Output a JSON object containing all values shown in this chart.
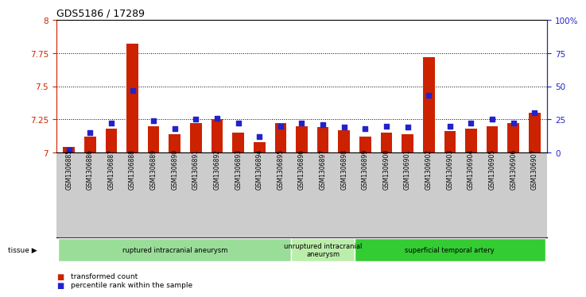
{
  "title": "GDS5186 / 17289",
  "samples": [
    "GSM1306885",
    "GSM1306886",
    "GSM1306887",
    "GSM1306888",
    "GSM1306889",
    "GSM1306890",
    "GSM1306891",
    "GSM1306892",
    "GSM1306893",
    "GSM1306894",
    "GSM1306895",
    "GSM1306896",
    "GSM1306897",
    "GSM1306898",
    "GSM1306899",
    "GSM1306900",
    "GSM1306901",
    "GSM1306902",
    "GSM1306903",
    "GSM1306904",
    "GSM1306905",
    "GSM1306906",
    "GSM1306907"
  ],
  "transformed_count": [
    7.04,
    7.12,
    7.18,
    7.82,
    7.2,
    7.14,
    7.22,
    7.25,
    7.15,
    7.08,
    7.22,
    7.2,
    7.19,
    7.17,
    7.12,
    7.15,
    7.14,
    7.72,
    7.16,
    7.18,
    7.2,
    7.22,
    7.3
  ],
  "percentile_rank": [
    2,
    15,
    22,
    47,
    24,
    18,
    25,
    26,
    22,
    12,
    20,
    22,
    21,
    19,
    18,
    20,
    19,
    43,
    20,
    22,
    25,
    22,
    30
  ],
  "ylim_left": [
    7.0,
    8.0
  ],
  "ylim_right": [
    0,
    100
  ],
  "yticks_left": [
    7.0,
    7.25,
    7.5,
    7.75,
    8.0
  ],
  "ytick_labels_left": [
    "7",
    "7.25",
    "7.5",
    "7.75",
    "8"
  ],
  "yticks_right": [
    0,
    25,
    50,
    75,
    100
  ],
  "ytick_labels_right": [
    "0",
    "25",
    "50",
    "75",
    "100%"
  ],
  "groups": [
    {
      "label": "ruptured intracranial aneurysm",
      "start": 0,
      "end": 11,
      "color": "#99dd99"
    },
    {
      "label": "unruptured intracranial\naneurysm",
      "start": 11,
      "end": 14,
      "color": "#bbeeaa"
    },
    {
      "label": "superficial temporal artery",
      "start": 14,
      "end": 23,
      "color": "#33cc33"
    }
  ],
  "bar_color": "#cc2200",
  "dot_color": "#2222cc",
  "bar_width": 0.55,
  "dot_size": 15,
  "plot_bg_color": "#ffffff",
  "xlabel_bg_color": "#cccccc",
  "tissue_label": "tissue",
  "legend_bar_label": "transformed count",
  "legend_dot_label": "percentile rank within the sample",
  "left_tick_color": "#cc2200",
  "right_tick_color": "#2222cc",
  "grid_yticks": [
    7.25,
    7.5,
    7.75
  ]
}
